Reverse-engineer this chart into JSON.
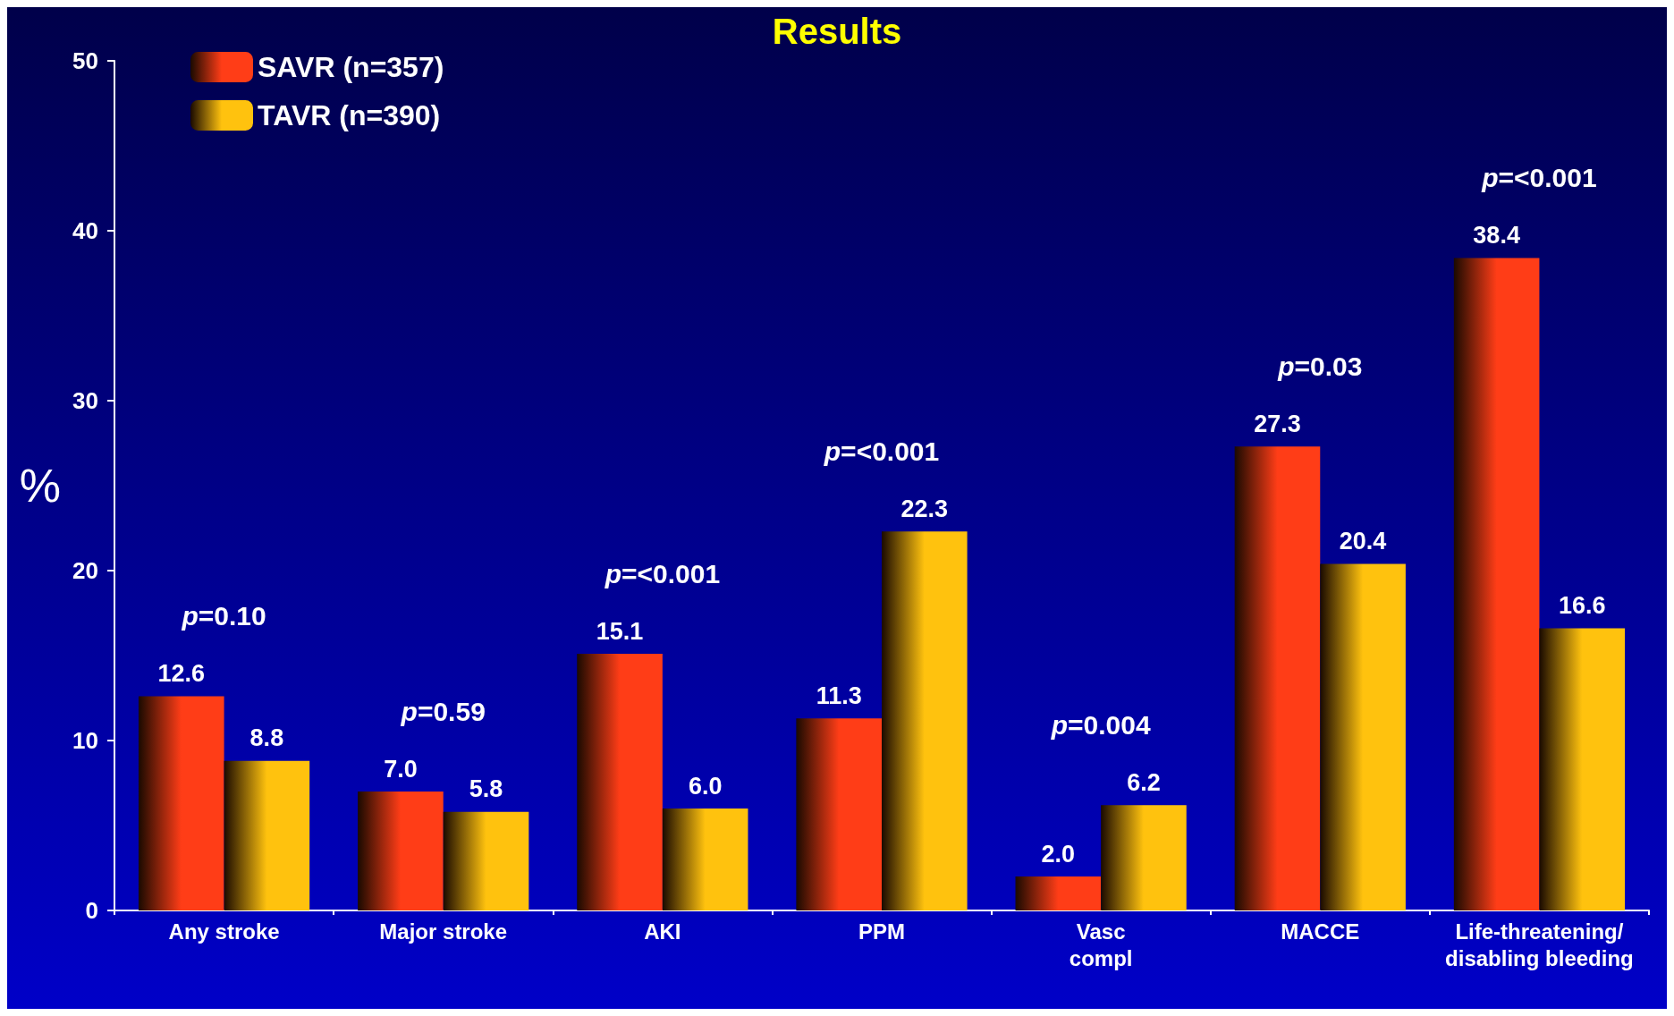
{
  "chart_data": {
    "type": "bar",
    "title": "Results",
    "ylabel": "%",
    "categories": [
      "Any stroke",
      "Major stroke",
      "AKI",
      "PPM",
      "Vasc\ncompl",
      "MACCE",
      "Life-threatening/\ndisabling bleeding"
    ],
    "series": [
      {
        "name": "SAVR (n=357)",
        "color": "#ff3d17",
        "values": [
          12.6,
          7.0,
          15.1,
          11.3,
          2.0,
          27.3,
          38.4
        ]
      },
      {
        "name": "TAVR (n=390)",
        "color": "#ffc20e",
        "values": [
          8.8,
          5.8,
          6.0,
          22.3,
          6.2,
          20.4,
          16.6
        ]
      }
    ],
    "value_labels": [
      [
        "12.6",
        "7.0",
        "15.1",
        "11.3",
        "2.0",
        "27.3",
        "38.4"
      ],
      [
        "8.8",
        "5.8",
        "6.0",
        "22.3",
        "6.2",
        "20.4",
        "16.6"
      ]
    ],
    "annotations": [
      "p=0.10",
      "p=0.59",
      "p=<0.001",
      "p=<0.001",
      "p=0.004",
      "p=0.03",
      "p=<0.001"
    ],
    "ylim": [
      0,
      50
    ],
    "yticks": [
      0,
      10,
      20,
      30,
      40,
      50
    ],
    "grid": false,
    "legend": "top left"
  }
}
